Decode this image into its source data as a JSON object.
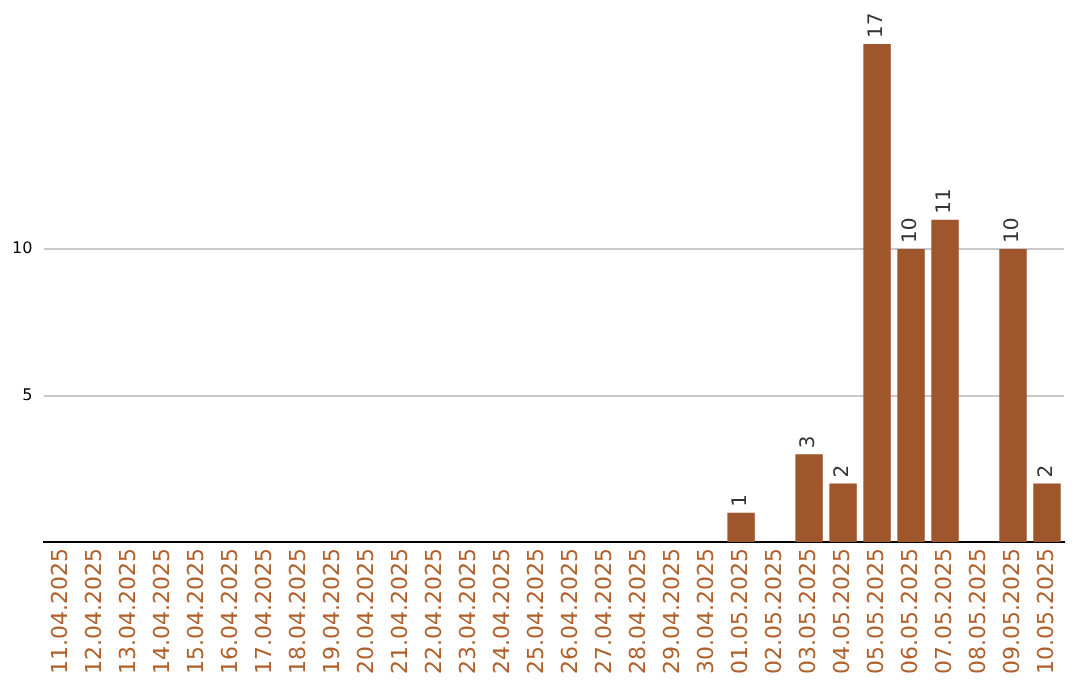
{
  "chart_data": {
    "type": "bar",
    "categories": [
      "11.04.2025",
      "12.04.2025",
      "13.04.2025",
      "14.04.2025",
      "15.04.2025",
      "16.04.2025",
      "17.04.2025",
      "18.04.2025",
      "19.04.2025",
      "20.04.2025",
      "21.04.2025",
      "22.04.2025",
      "23.04.2025",
      "24.04.2025",
      "25.04.2025",
      "26.04.2025",
      "27.04.2025",
      "28.04.2025",
      "29.04.2025",
      "30.04.2025",
      "01.05.2025",
      "02.05.2025",
      "03.05.2025",
      "04.05.2025",
      "05.05.2025",
      "06.05.2025",
      "07.05.2025",
      "08.05.2025",
      "09.05.2025",
      "10.05.2025"
    ],
    "values": [
      0,
      0,
      0,
      0,
      0,
      0,
      0,
      0,
      0,
      0,
      0,
      0,
      0,
      0,
      0,
      0,
      0,
      0,
      0,
      0,
      1,
      0,
      3,
      2,
      17,
      10,
      11,
      0,
      10,
      2
    ],
    "value_labels": [
      null,
      null,
      null,
      null,
      null,
      null,
      null,
      null,
      null,
      null,
      null,
      null,
      null,
      null,
      null,
      null,
      null,
      null,
      null,
      null,
      "1",
      null,
      "3",
      "2",
      "17",
      "10",
      "11",
      null,
      "10",
      "2"
    ],
    "color": "#a0562c",
    "ylim": [
      0,
      17
    ],
    "yticks": [
      5,
      10
    ],
    "grid": "y",
    "legend": false
  }
}
